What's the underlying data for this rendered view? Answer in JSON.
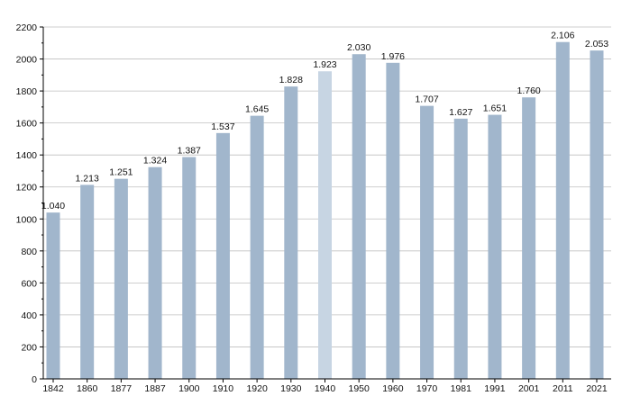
{
  "chart_data": {
    "type": "bar",
    "title": "",
    "xlabel": "",
    "ylabel": "",
    "categories": [
      "1842",
      "1860",
      "1877",
      "1887",
      "1900",
      "1910",
      "1920",
      "1930",
      "1940",
      "1950",
      "1960",
      "1970",
      "1981",
      "1991",
      "2001",
      "2011",
      "2021"
    ],
    "values": [
      1040,
      1213,
      1251,
      1324,
      1387,
      1537,
      1645,
      1828,
      1923,
      2030,
      1976,
      1707,
      1627,
      1651,
      1760,
      2106,
      2053
    ],
    "data_labels": [
      "1.040",
      "1.213",
      "1.251",
      "1.324",
      "1.387",
      "1.537",
      "1.645",
      "1.828",
      "1.923",
      "2.030",
      "1.976",
      "1.707",
      "1.627",
      "1.651",
      "1.760",
      "2.106",
      "2.053"
    ],
    "ylim": [
      0,
      2200
    ],
    "y_ticks": [
      0,
      200,
      400,
      600,
      800,
      1000,
      1200,
      1400,
      1600,
      1800,
      2000,
      2200
    ],
    "y_tick_labels": [
      "0",
      "200",
      "400",
      "600",
      "800",
      "1000",
      "1200",
      "1400",
      "1600",
      "1800",
      "2000",
      "2200"
    ],
    "grid": true,
    "legend": "none",
    "colors": {
      "bar": "#a1b6cc",
      "bar_highlight": "#c7d5e3",
      "grid": "#bfbfbf",
      "axis": "#000000",
      "text": "#111111"
    }
  }
}
